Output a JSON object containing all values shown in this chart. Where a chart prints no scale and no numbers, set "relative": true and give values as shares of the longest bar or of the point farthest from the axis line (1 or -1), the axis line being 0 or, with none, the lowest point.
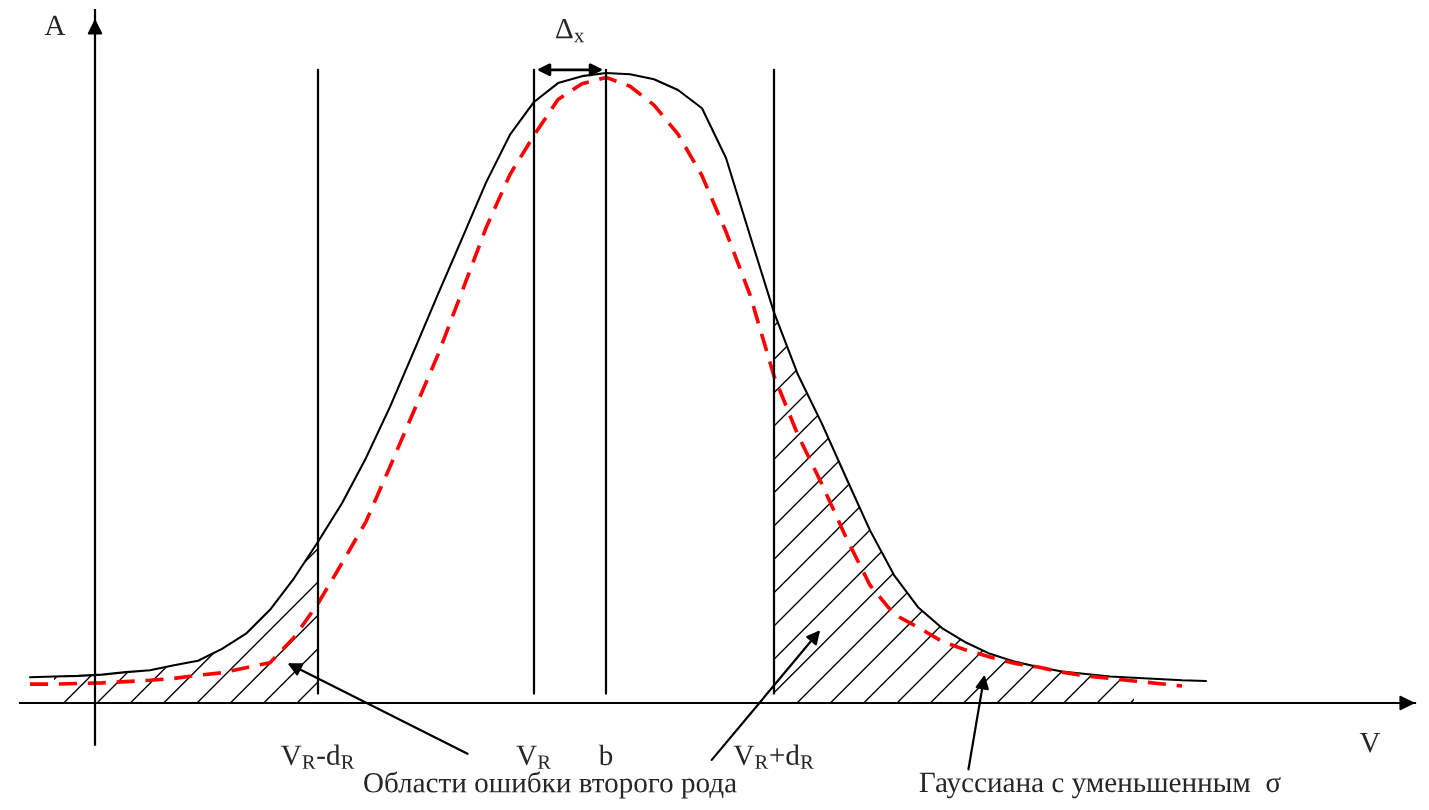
{
  "chart_data": {
    "type": "line",
    "relative": true,
    "xlabel": "V",
    "ylabel": "A",
    "categories": [
      null,
      null,
      null,
      null,
      null,
      null,
      null,
      null,
      null,
      null,
      null,
      null,
      "V$_{R}$-d$_{R}$",
      null,
      null,
      null,
      null,
      null,
      null,
      null,
      null,
      "V$_{R}$",
      null,
      null,
      "b",
      null,
      null,
      null,
      null,
      null,
      null,
      "V$_{R}$+d$_{R}$",
      null,
      null,
      null,
      null,
      null,
      null,
      null,
      null,
      null,
      null,
      null,
      null,
      null,
      null,
      null,
      null,
      null,
      null
    ],
    "series": [
      {
        "type": "area",
        "color": "#000000",
        "values": [
          null,
          0.042,
          0.043,
          0.045,
          0.049,
          0.052,
          0.06,
          0.067,
          0.086,
          0.11,
          0.148,
          0.198,
          0.256,
          null,
          null,
          null,
          null,
          null,
          null,
          null,
          null,
          null,
          null,
          null,
          null,
          null,
          null,
          null,
          null,
          null,
          null,
          0.62,
          0.521,
          0.443,
          0.358,
          0.274,
          0.203,
          0.152,
          0.119,
          0.096,
          0.078,
          0.066,
          0.057,
          0.05,
          0.046,
          0.042,
          0.04,
          null,
          null,
          null
        ]
      },
      {
        "color": "#000000",
        "line_style": "solid",
        "values": [
          0.041,
          0.042,
          0.043,
          0.045,
          0.049,
          0.052,
          0.06,
          0.067,
          0.086,
          0.11,
          0.148,
          0.198,
          0.256,
          0.317,
          0.389,
          0.47,
          0.559,
          0.649,
          0.737,
          0.826,
          0.902,
          0.954,
          0.984,
          0.995,
          1.0,
          0.998,
          0.99,
          0.973,
          0.944,
          0.865,
          0.742,
          0.62,
          0.521,
          0.443,
          0.358,
          0.274,
          0.203,
          0.152,
          0.119,
          0.096,
          0.078,
          0.066,
          0.057,
          0.05,
          0.046,
          0.042,
          0.04,
          0.038,
          0.036,
          0.035
        ]
      },
      {
        "color": "#ff0000",
        "line_style": "dashed",
        "values": [
          0.03,
          0.03,
          0.031,
          0.032,
          0.034,
          0.036,
          0.039,
          0.044,
          0.048,
          0.056,
          0.064,
          0.104,
          0.158,
          0.222,
          0.288,
          0.375,
          0.464,
          0.553,
          0.653,
          0.754,
          0.839,
          0.901,
          0.958,
          0.983,
          0.993,
          0.979,
          0.949,
          0.903,
          0.837,
          0.748,
          0.648,
          0.519,
          0.425,
          0.347,
          0.263,
          0.187,
          0.141,
          0.12,
          0.098,
          0.084,
          0.073,
          0.063,
          0.057,
          0.049,
          0.043,
          0.039,
          0.035,
          0.031,
          0.027,
          null
        ]
      }
    ],
    "ref_lines": [
      {
        "axis": "x",
        "value": "V$_{R}$-d$_{R}$"
      },
      {
        "axis": "x",
        "value": "V$_{R}$"
      },
      {
        "axis": "x",
        "value": "b"
      },
      {
        "axis": "x",
        "value": "V$_{R}$+d$_{R}$"
      }
    ],
    "annotations": [
      "Δ$_{x}$",
      "Области ошибки второго рода",
      "Гауссиана с уменьшенным  σ"
    ],
    "grid": false,
    "legend": false
  }
}
